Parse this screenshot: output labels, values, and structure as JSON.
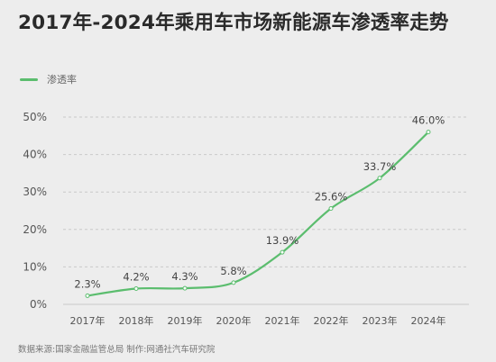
{
  "title": "2017年-2024年乘用车市场新能源车渗透率走势",
  "source": "数据来源:国家金融监管总局 制作:网通社汽车研究院",
  "colors": {
    "series": "#5bbd6e",
    "grid": "#c9c9c9",
    "axis_text": "#555555",
    "background": "#ededed"
  },
  "chart_data": {
    "type": "line",
    "title": "2017年-2024年乘用车市场新能源车渗透率走势",
    "xlabel": "",
    "ylabel": "",
    "categories": [
      "2017年",
      "2018年",
      "2019年",
      "2020年",
      "2021年",
      "2022年",
      "2023年",
      "2024年"
    ],
    "series": [
      {
        "name": "渗透率",
        "values": [
          2.3,
          4.2,
          4.3,
          5.8,
          13.9,
          25.6,
          33.7,
          46.0
        ],
        "labels": [
          "2.3%",
          "4.2%",
          "4.3%",
          "5.8%",
          "13.9%",
          "25.6%",
          "33.7%",
          "46.0%"
        ]
      }
    ],
    "yticks": [
      0,
      10,
      20,
      30,
      40,
      50
    ],
    "ytick_labels": [
      "0%",
      "10%",
      "20%",
      "30%",
      "40%",
      "50%"
    ],
    "ylim": [
      0,
      50
    ],
    "grid": true,
    "legend_position": "top-left"
  }
}
